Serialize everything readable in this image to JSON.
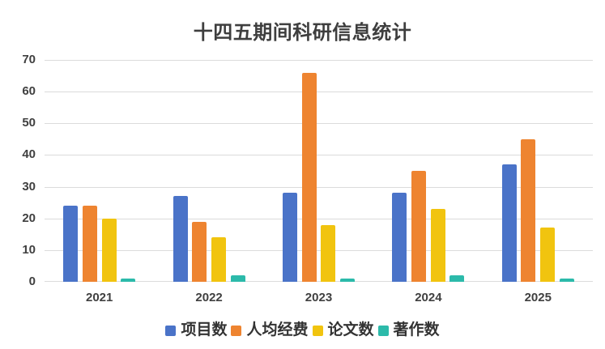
{
  "page": {
    "background_color": "#ffffff",
    "title": "十四五期间科研信息统计"
  },
  "chart_data": {
    "type": "bar",
    "title": "十四五期间科研信息统计",
    "xlabel": "",
    "ylabel": "",
    "categories": [
      "2021",
      "2022",
      "2023",
      "2024",
      "2025"
    ],
    "series": [
      {
        "name": "项目数",
        "color": "#4a73c8",
        "values": [
          24,
          27,
          28,
          28,
          37
        ]
      },
      {
        "name": "人均经费",
        "color": "#ee8430",
        "values": [
          24,
          19,
          66,
          35,
          45
        ]
      },
      {
        "name": "论文数",
        "color": "#f1c40f",
        "values": [
          20,
          14,
          18,
          23,
          17
        ]
      },
      {
        "name": "著作数",
        "color": "#2cbaaa",
        "values": [
          1,
          2,
          1,
          2,
          1
        ]
      }
    ],
    "ylim": [
      0,
      70
    ],
    "yticks": [
      0,
      10,
      20,
      30,
      40,
      50,
      60,
      70
    ],
    "grid": true,
    "gridline_color": "#dbdbdb",
    "legend_position": "bottom",
    "title_color": "#3e3e3e",
    "axis_label_color": "#404040",
    "legend_text_color": "#333333"
  }
}
